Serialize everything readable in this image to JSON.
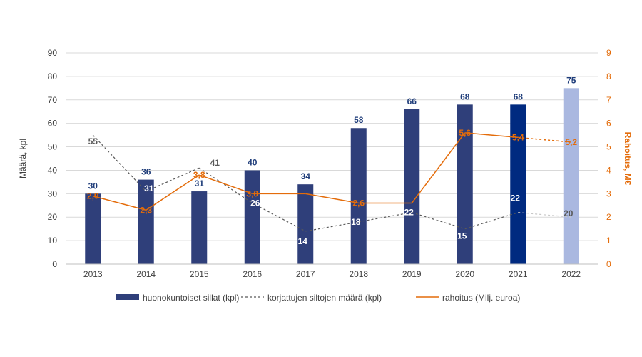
{
  "chart_data": {
    "type": "bar",
    "categories": [
      "2013",
      "2014",
      "2015",
      "2016",
      "2017",
      "2018",
      "2019",
      "2020",
      "2021",
      "2022"
    ],
    "ylabel": "Määrä, kpl",
    "ylabel_right": "Rahoitus, M€",
    "ylim": [
      0,
      90
    ],
    "yticks": [
      "0",
      "10",
      "20",
      "30",
      "40",
      "50",
      "60",
      "70",
      "80",
      "90"
    ],
    "ylim_right": [
      0,
      9
    ],
    "yticks_right": [
      "0",
      "1",
      "2",
      "3",
      "4",
      "5",
      "6",
      "7",
      "8",
      "9"
    ],
    "grid": true,
    "legend_position": "bottom",
    "series": [
      {
        "name": "huonokuntoiset sillat (kpl)",
        "type": "bar",
        "axis": "left",
        "values": [
          30,
          36,
          31,
          40,
          34,
          58,
          66,
          68,
          68,
          75
        ],
        "labels": [
          "30",
          "36",
          "31",
          "40",
          "34",
          "58",
          "66",
          "68",
          "68",
          "75"
        ],
        "colors": [
          "#2f3f7a",
          "#2f3f7a",
          "#2f3f7a",
          "#2f3f7a",
          "#2f3f7a",
          "#2f3f7a",
          "#2f3f7a",
          "#2f3f7a",
          "#002a80",
          "#aab8e0"
        ]
      },
      {
        "name": "korjattujen siltojen määrä (kpl)",
        "type": "line",
        "style": "dashed",
        "axis": "left",
        "values": [
          55,
          31,
          41,
          26,
          14,
          18,
          22,
          15,
          22,
          20
        ],
        "labels": [
          "55",
          "31",
          "41",
          "26",
          "14",
          "18",
          "22",
          "15",
          "22",
          "20"
        ],
        "color": "#595959"
      },
      {
        "name": "rahoitus (Milj. euroa)",
        "type": "line",
        "axis": "right",
        "values": [
          2.9,
          2.3,
          3.8,
          3.0,
          3.0,
          2.6,
          2.6,
          5.6,
          5.4,
          5.2
        ],
        "labels": [
          "2,9",
          "2,3",
          "3,8",
          "3,0",
          "",
          "2,6",
          "",
          "5,6",
          "5,4",
          "5,2"
        ],
        "color": "#e46c0a"
      }
    ]
  }
}
